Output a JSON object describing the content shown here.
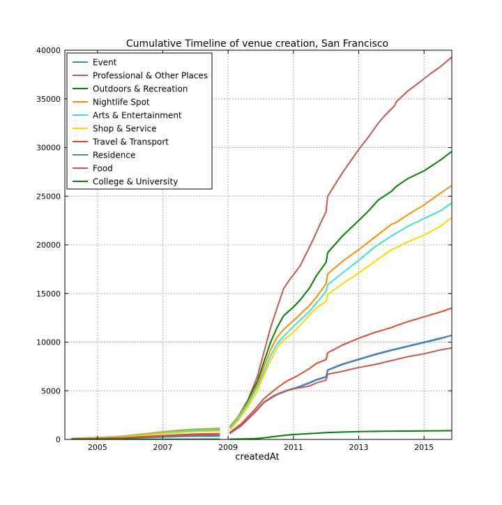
{
  "chart_data": {
    "type": "line",
    "title": "Cumulative Timeline of venue creation, San Francisco",
    "xlabel": "createdAt",
    "ylabel": "",
    "xlim": [
      2004.0,
      2015.85
    ],
    "ylim": [
      0,
      40000
    ],
    "xticks": [
      2005,
      2007,
      2009,
      2011,
      2013,
      2015
    ],
    "yticks": [
      0,
      5000,
      10000,
      15000,
      20000,
      25000,
      30000,
      35000,
      40000
    ],
    "grid": true,
    "legend_position": "top-left",
    "series": [
      {
        "name": "Event",
        "color": "#4682b4",
        "x": [
          2004.2,
          2005.0,
          2005.8,
          2006.5,
          2007.5,
          2008.0,
          2008.75,
          null,
          2009.05,
          2009.4,
          2009.8,
          2010.1,
          2010.5,
          2010.8,
          2011.1,
          2011.5,
          2011.7,
          2012.0,
          2012.05,
          2012.5,
          2013.0,
          2013.5,
          2014.0,
          2014.5,
          2015.0,
          2015.5,
          2015.85
        ],
        "y": [
          30,
          40,
          100,
          200,
          300,
          330,
          340,
          null,
          600,
          1400,
          2700,
          3800,
          4600,
          5000,
          5300,
          5800,
          6100,
          6400,
          7100,
          7700,
          8200,
          8700,
          9150,
          9550,
          9950,
          10350,
          10700
        ]
      },
      {
        "name": "Professional & Other Places",
        "color": "#c55555",
        "x": [
          2004.2,
          2005.0,
          2005.8,
          2006.5,
          2007.5,
          2008.0,
          2008.75,
          null,
          2009.05,
          2009.3,
          2009.6,
          2009.9,
          2010.1,
          2010.3,
          2010.5,
          2010.7,
          2010.9,
          2011.2,
          2011.6,
          2011.8,
          2012.0,
          2012.05,
          2012.5,
          2013.0,
          2013.3,
          2013.6,
          2013.8,
          2014.1,
          2014.15,
          2014.5,
          2014.9,
          2015.2,
          2015.5,
          2015.85
        ],
        "y": [
          100,
          180,
          300,
          500,
          800,
          900,
          950,
          null,
          1200,
          2200,
          4000,
          6500,
          9000,
          11500,
          13500,
          15500,
          16500,
          17800,
          20500,
          22000,
          23400,
          25000,
          27400,
          29800,
          31100,
          32500,
          33300,
          34300,
          34700,
          35800,
          36800,
          37600,
          38300,
          39300
        ]
      },
      {
        "name": "Outdoors & Recreation",
        "color": "#008000",
        "x": [
          2004.2,
          2005.0,
          2005.8,
          2006.5,
          2007.5,
          2008.75,
          null,
          2009.05,
          2009.3,
          2009.6,
          2009.9,
          2010.1,
          2010.3,
          2010.5,
          2010.7,
          2011.0,
          2011.2,
          2011.5,
          2011.7,
          2012.0,
          2012.05,
          2012.5,
          2013.0,
          2013.3,
          2013.6,
          2014.0,
          2014.15,
          2014.5,
          2015.0,
          2015.5,
          2015.85
        ],
        "y": [
          100,
          180,
          300,
          550,
          850,
          1000,
          null,
          1300,
          2300,
          4000,
          6000,
          8000,
          10000,
          11500,
          12700,
          13600,
          14300,
          15600,
          16800,
          18200,
          19200,
          20900,
          22500,
          23500,
          24600,
          25500,
          26000,
          26800,
          27600,
          28700,
          29600
        ]
      },
      {
        "name": "Nightlife Spot",
        "color": "#ff8c00",
        "x": [
          2004.2,
          2005.0,
          2005.8,
          2006.5,
          2007.5,
          2008.0,
          2008.75,
          null,
          2009.05,
          2009.3,
          2009.6,
          2009.9,
          2010.1,
          2010.3,
          2010.5,
          2010.7,
          2011.0,
          2011.5,
          2011.7,
          2012.0,
          2012.05,
          2012.5,
          2013.0,
          2013.5,
          2014.0,
          2014.15,
          2014.5,
          2015.0,
          2015.5,
          2015.85
        ],
        "y": [
          110,
          200,
          350,
          600,
          950,
          1050,
          1150,
          null,
          1250,
          2300,
          3800,
          5700,
          7500,
          9200,
          10500,
          11300,
          12200,
          13800,
          14600,
          16000,
          17000,
          18300,
          19500,
          20800,
          22100,
          22300,
          23100,
          24100,
          25300,
          26100
        ]
      },
      {
        "name": "Arts & Entertainment",
        "color": "#40e0d0",
        "x": [
          2004.2,
          2005.0,
          2005.8,
          2006.5,
          2007.5,
          2008.0,
          2008.75,
          null,
          2009.05,
          2009.3,
          2009.6,
          2009.9,
          2010.1,
          2010.3,
          2010.5,
          2010.7,
          2011.0,
          2011.5,
          2011.7,
          2012.0,
          2012.05,
          2012.5,
          2013.0,
          2013.5,
          2014.0,
          2014.15,
          2014.5,
          2015.0,
          2015.5,
          2015.85
        ],
        "y": [
          100,
          170,
          300,
          520,
          850,
          950,
          1050,
          null,
          1150,
          2100,
          3600,
          5400,
          7000,
          8600,
          9800,
          10600,
          11600,
          13200,
          14000,
          15200,
          15900,
          17100,
          18400,
          19800,
          20900,
          21200,
          21900,
          22700,
          23500,
          24300
        ]
      },
      {
        "name": "Shop & Service",
        "color": "#ffd700",
        "x": [
          2004.2,
          2005.0,
          2005.8,
          2006.5,
          2007.5,
          2008.0,
          2008.75,
          null,
          2009.05,
          2009.3,
          2009.6,
          2009.9,
          2010.1,
          2010.3,
          2010.5,
          2010.7,
          2011.0,
          2011.5,
          2011.7,
          2012.0,
          2012.05,
          2012.5,
          2013.0,
          2013.5,
          2014.0,
          2014.15,
          2014.5,
          2015.0,
          2015.5,
          2015.85
        ],
        "y": [
          80,
          140,
          250,
          450,
          700,
          800,
          880,
          null,
          950,
          1900,
          3300,
          5000,
          6600,
          8100,
          9400,
          10200,
          11000,
          12800,
          13500,
          14200,
          14900,
          16000,
          17100,
          18300,
          19500,
          19700,
          20300,
          21000,
          21900,
          22800
        ]
      },
      {
        "name": "Travel & Transport",
        "color": "#e2492d",
        "x": [
          2004.2,
          2005.0,
          2005.8,
          2006.5,
          2007.5,
          2008.0,
          2008.75,
          null,
          2009.05,
          2009.4,
          2009.8,
          2010.1,
          2010.5,
          2010.8,
          2011.1,
          2011.5,
          2011.7,
          2012.0,
          2012.05,
          2012.5,
          2013.0,
          2013.5,
          2013.7,
          2014.0,
          2014.15,
          2014.5,
          2015.0,
          2015.5,
          2015.85
        ],
        "y": [
          60,
          100,
          180,
          300,
          480,
          550,
          600,
          null,
          700,
          1600,
          3000,
          4200,
          5300,
          6000,
          6500,
          7300,
          7800,
          8200,
          8900,
          9700,
          10400,
          11000,
          11200,
          11500,
          11700,
          12100,
          12600,
          13100,
          13500
        ]
      },
      {
        "name": "Residence",
        "color": "#4682b4",
        "x": [
          2004.2,
          2005.0,
          2005.8,
          2006.5,
          2007.5,
          2008.0,
          2008.75,
          null,
          2009.05,
          2009.4,
          2009.8,
          2010.1,
          2010.5,
          2010.8,
          2011.1,
          2011.5,
          2011.7,
          2012.0,
          2012.05,
          2012.5,
          2013.0,
          2013.5,
          2014.0,
          2014.5,
          2015.0,
          2015.5,
          2015.85
        ],
        "y": [
          40,
          60,
          130,
          250,
          400,
          430,
          460,
          null,
          650,
          1450,
          2750,
          3850,
          4650,
          5050,
          5350,
          5850,
          6150,
          6450,
          7150,
          7750,
          8250,
          8750,
          9200,
          9600,
          10000,
          10400,
          10700
        ]
      },
      {
        "name": "Food",
        "color": "#c55555",
        "x": [
          2004.2,
          2005.0,
          2005.8,
          2006.5,
          2007.5,
          2008.0,
          2008.75,
          null,
          2009.05,
          2009.4,
          2009.8,
          2010.1,
          2010.4,
          2010.7,
          2011.0,
          2011.5,
          2011.7,
          2012.0,
          2012.05,
          2012.5,
          2013.0,
          2013.5,
          2014.0,
          2014.5,
          2015.0,
          2015.5,
          2015.85
        ],
        "y": [
          50,
          80,
          150,
          270,
          420,
          470,
          510,
          null,
          600,
          1400,
          2700,
          3800,
          4500,
          4900,
          5200,
          5500,
          5800,
          6100,
          6700,
          7000,
          7400,
          7700,
          8100,
          8500,
          8800,
          9200,
          9400
        ]
      },
      {
        "name": "College & University",
        "color": "#008000",
        "x": [
          2004.2,
          2006.0,
          2008.0,
          2008.75,
          null,
          2009.05,
          2009.5,
          2009.8,
          2010.0,
          2010.3,
          2010.6,
          2011.0,
          2011.5,
          2012.0,
          2012.5,
          2013.0,
          2013.5,
          2014.0,
          2014.5,
          2015.0,
          2015.5,
          2015.85
        ],
        "y": [
          5,
          15,
          25,
          30,
          null,
          30,
          50,
          80,
          120,
          250,
          380,
          500,
          600,
          700,
          760,
          800,
          830,
          850,
          860,
          880,
          890,
          900
        ]
      }
    ]
  }
}
